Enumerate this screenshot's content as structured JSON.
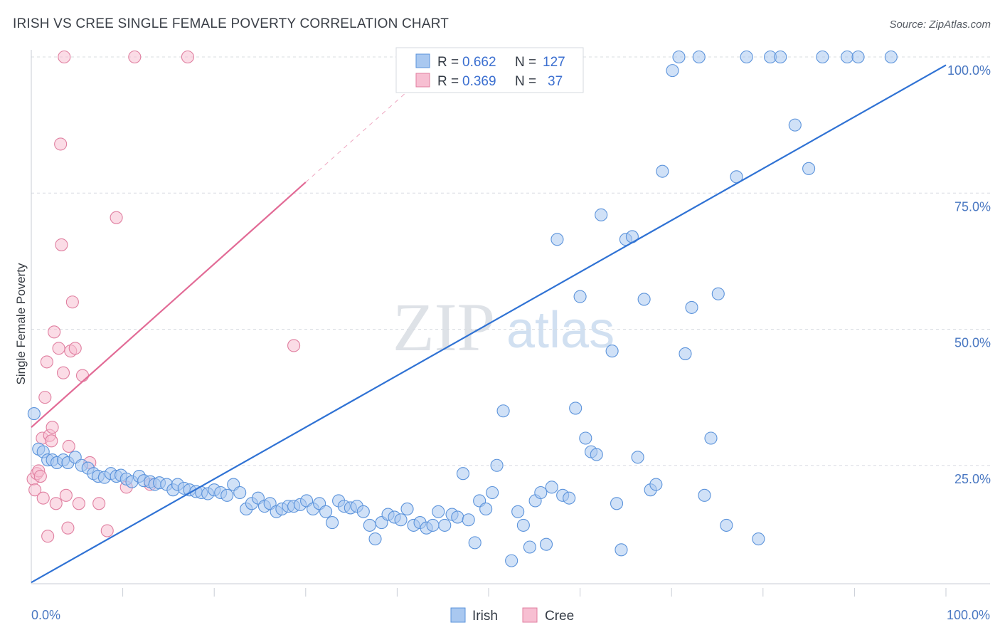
{
  "title": "IRISH VS CREE SINGLE FEMALE POVERTY CORRELATION CHART",
  "source": "Source: ZipAtlas.com",
  "watermark": {
    "zip": "ZIP",
    "atlas": "atlas"
  },
  "colors": {
    "irish_fill": "#a9c8f0",
    "irish_stroke": "#5b93db",
    "irish_line": "#2f72d4",
    "cree_fill": "#f7bfd2",
    "cree_stroke": "#e07fa0",
    "cree_line": "#e26b96",
    "grid": "#d8dce2",
    "tick_label": "#4a78c2"
  },
  "chart_data": {
    "type": "scatter",
    "xlabel": "",
    "ylabel": "Single Female Poverty",
    "xlim": [
      0,
      100
    ],
    "ylim": [
      0,
      100
    ],
    "x_tick_labels": {
      "min": "0.0%",
      "max": "100.0%"
    },
    "y_ticks": [
      {
        "value": 25,
        "label": "25.0%"
      },
      {
        "value": 50,
        "label": "50.0%"
      },
      {
        "value": 75,
        "label": "75.0%"
      },
      {
        "value": 100,
        "label": "100.0%"
      }
    ],
    "grid": "horizontal-dashed",
    "legend_placement": "top-center",
    "series": [
      {
        "name": "Irish",
        "R": "0.662",
        "N": "127",
        "trend": {
          "x0": 0,
          "y0": 3.5,
          "x1": 100,
          "y1": 98.5,
          "style": "solid"
        },
        "points": [
          [
            0.3,
            34.5
          ],
          [
            0.8,
            28
          ],
          [
            1.3,
            27.5
          ],
          [
            1.8,
            26
          ],
          [
            2.3,
            26
          ],
          [
            2.8,
            25.5
          ],
          [
            3.5,
            26
          ],
          [
            4,
            25.5
          ],
          [
            4.8,
            26.5
          ],
          [
            5.5,
            25
          ],
          [
            6.2,
            24.5
          ],
          [
            6.8,
            23.5
          ],
          [
            7.3,
            23
          ],
          [
            8,
            22.8
          ],
          [
            8.7,
            23.5
          ],
          [
            9.3,
            23
          ],
          [
            9.8,
            23.2
          ],
          [
            10.4,
            22.5
          ],
          [
            11,
            22
          ],
          [
            11.8,
            23
          ],
          [
            12.3,
            22.2
          ],
          [
            13,
            22
          ],
          [
            13.5,
            21.5
          ],
          [
            14,
            21.8
          ],
          [
            14.8,
            21.5
          ],
          [
            15.5,
            20.5
          ],
          [
            16,
            21.5
          ],
          [
            16.7,
            20.8
          ],
          [
            17.3,
            20.5
          ],
          [
            18,
            20.2
          ],
          [
            18.6,
            20
          ],
          [
            19.3,
            19.8
          ],
          [
            20,
            20.5
          ],
          [
            20.7,
            20
          ],
          [
            21.4,
            19.5
          ],
          [
            22.1,
            21.5
          ],
          [
            22.8,
            20
          ],
          [
            23.5,
            17
          ],
          [
            24.1,
            18
          ],
          [
            24.8,
            19
          ],
          [
            25.5,
            17.5
          ],
          [
            26.1,
            18
          ],
          [
            26.8,
            16.5
          ],
          [
            27.4,
            17
          ],
          [
            28.1,
            17.5
          ],
          [
            28.7,
            17.5
          ],
          [
            29.4,
            17.8
          ],
          [
            30.1,
            18.5
          ],
          [
            30.8,
            17
          ],
          [
            31.5,
            18
          ],
          [
            32.2,
            16.5
          ],
          [
            32.9,
            14.5
          ],
          [
            33.6,
            18.5
          ],
          [
            34.2,
            17.5
          ],
          [
            34.9,
            17.2
          ],
          [
            35.6,
            17.5
          ],
          [
            36.3,
            16.5
          ],
          [
            37,
            14
          ],
          [
            37.6,
            11.5
          ],
          [
            38.3,
            14.5
          ],
          [
            39,
            16
          ],
          [
            39.7,
            15.5
          ],
          [
            40.4,
            15
          ],
          [
            41.1,
            17
          ],
          [
            41.8,
            14
          ],
          [
            42.5,
            14.5
          ],
          [
            43.2,
            13.5
          ],
          [
            43.9,
            14
          ],
          [
            44.5,
            16.5
          ],
          [
            45.2,
            14
          ],
          [
            46,
            16
          ],
          [
            46.6,
            15.5
          ],
          [
            47.2,
            23.5
          ],
          [
            47.8,
            15
          ],
          [
            48.5,
            10.8
          ],
          [
            49,
            18.5
          ],
          [
            49.7,
            17
          ],
          [
            50.4,
            20
          ],
          [
            50.9,
            25
          ],
          [
            51.6,
            35
          ],
          [
            52.5,
            7.5
          ],
          [
            53.2,
            16.5
          ],
          [
            53.8,
            14
          ],
          [
            54.5,
            10
          ],
          [
            55.1,
            18.5
          ],
          [
            55.7,
            20
          ],
          [
            56.3,
            10.5
          ],
          [
            56.9,
            21
          ],
          [
            57.5,
            66.5
          ],
          [
            58.1,
            19.5
          ],
          [
            58.8,
            19
          ],
          [
            59.5,
            35.5
          ],
          [
            60,
            56
          ],
          [
            60.6,
            30
          ],
          [
            61.2,
            27.5
          ],
          [
            61.8,
            27
          ],
          [
            62.3,
            71
          ],
          [
            63.5,
            46
          ],
          [
            64,
            18
          ],
          [
            64.5,
            9.5
          ],
          [
            65,
            66.5
          ],
          [
            65.7,
            67
          ],
          [
            66.3,
            26.5
          ],
          [
            67,
            55.5
          ],
          [
            67.7,
            20.5
          ],
          [
            68.3,
            21.5
          ],
          [
            69,
            79
          ],
          [
            70.1,
            97.5
          ],
          [
            70.8,
            100
          ],
          [
            71.5,
            45.5
          ],
          [
            72.2,
            54
          ],
          [
            73,
            100
          ],
          [
            73.6,
            19.5
          ],
          [
            74.3,
            30
          ],
          [
            75.1,
            56.5
          ],
          [
            76,
            14
          ],
          [
            77.1,
            78
          ],
          [
            78.2,
            100
          ],
          [
            79.5,
            11.5
          ],
          [
            80.8,
            100
          ],
          [
            81.9,
            100
          ],
          [
            83.5,
            87.5
          ],
          [
            85,
            79.5
          ],
          [
            86.5,
            100
          ],
          [
            89.2,
            100
          ],
          [
            90.4,
            100
          ],
          [
            94,
            100
          ]
        ]
      },
      {
        "name": "Cree",
        "R": "0.369",
        "N": "37",
        "trend": {
          "x0": 0,
          "y0": 32,
          "x1": 30,
          "y1": 77,
          "x_ext": 45,
          "y_ext": 99.5,
          "style": "solid-then-dashed"
        },
        "points": [
          [
            0.2,
            22.5
          ],
          [
            0.4,
            20.5
          ],
          [
            0.6,
            23.5
          ],
          [
            0.8,
            24
          ],
          [
            1,
            23
          ],
          [
            1.2,
            30
          ],
          [
            1.3,
            19
          ],
          [
            1.5,
            37.5
          ],
          [
            1.7,
            44
          ],
          [
            1.8,
            12
          ],
          [
            2,
            30.5
          ],
          [
            2.2,
            29.5
          ],
          [
            2.3,
            32
          ],
          [
            2.5,
            49.5
          ],
          [
            2.7,
            18
          ],
          [
            3,
            46.5
          ],
          [
            3.2,
            84
          ],
          [
            3.3,
            65.5
          ],
          [
            3.5,
            42
          ],
          [
            3.6,
            100
          ],
          [
            3.8,
            19.5
          ],
          [
            4,
            13.5
          ],
          [
            4.1,
            28.5
          ],
          [
            4.3,
            46
          ],
          [
            4.5,
            55
          ],
          [
            4.8,
            46.5
          ],
          [
            5.2,
            18
          ],
          [
            5.6,
            41.5
          ],
          [
            6.4,
            25.5
          ],
          [
            7.4,
            18
          ],
          [
            8.3,
            13
          ],
          [
            9.3,
            70.5
          ],
          [
            10.4,
            21
          ],
          [
            11.3,
            100
          ],
          [
            13,
            21.5
          ],
          [
            17.1,
            100
          ],
          [
            28.7,
            47
          ]
        ]
      }
    ]
  }
}
